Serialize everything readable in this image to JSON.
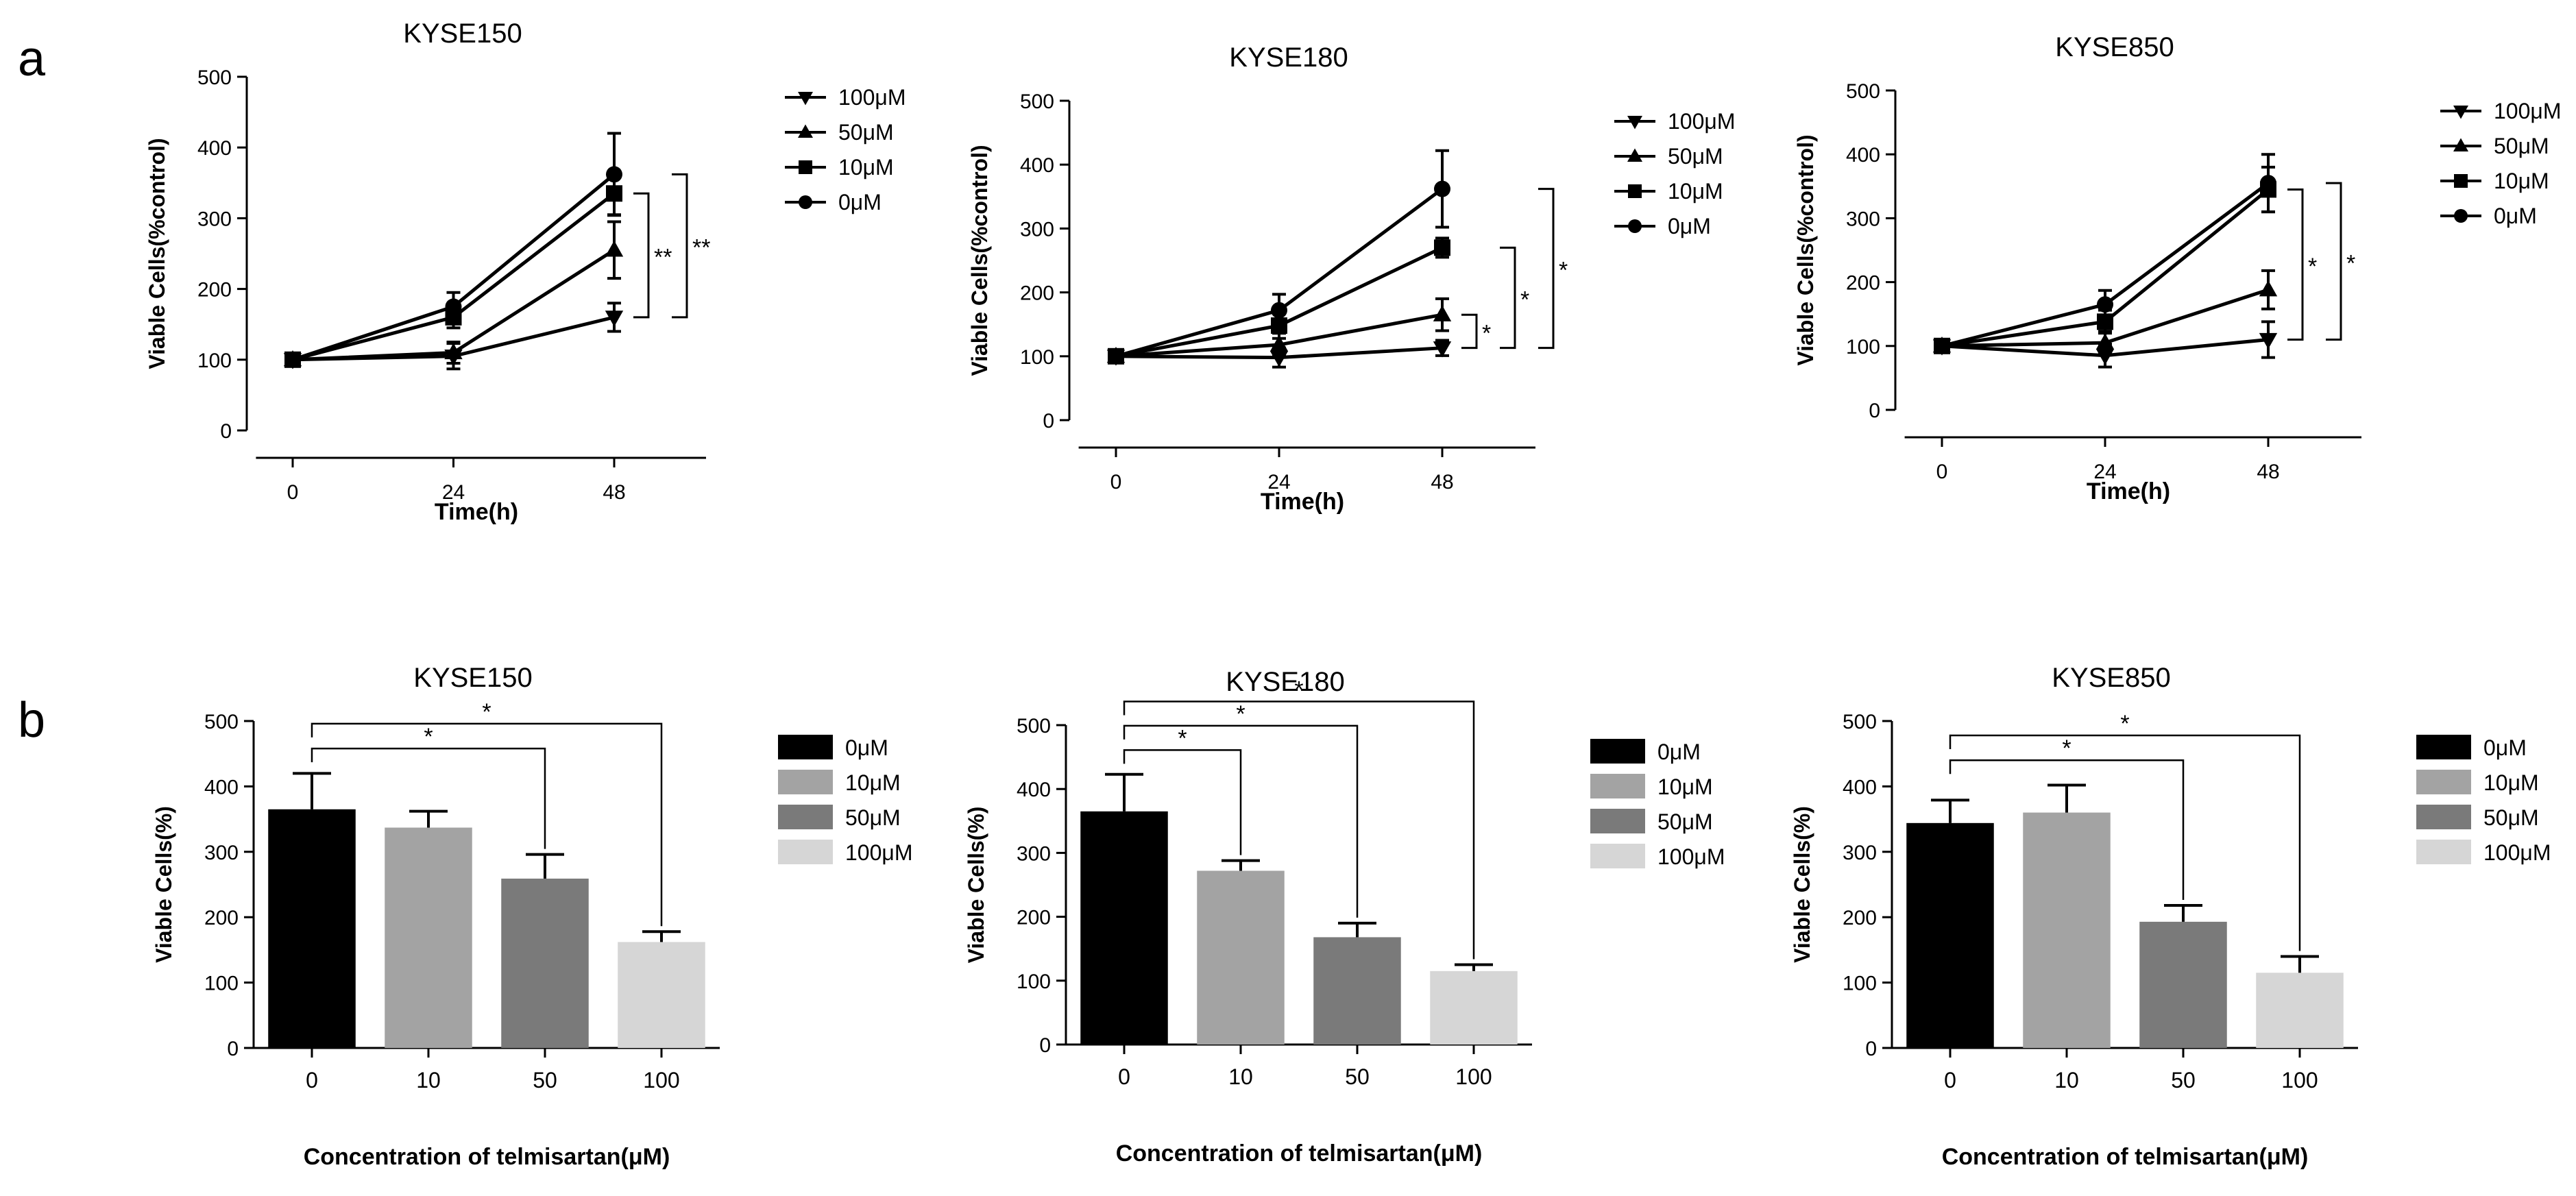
{
  "panel_labels": {
    "a": "a",
    "b": "b"
  },
  "chart_data": [
    {
      "type": "line",
      "panel": "a",
      "title": "KYSE150",
      "xlabel": "Time(h)",
      "ylabel": "Viable Cells(%control)",
      "x": [
        0,
        24,
        48
      ],
      "x_tick_labels": [
        "0",
        "24",
        "48"
      ],
      "ylim": [
        0,
        500
      ],
      "y_ticks": [
        0,
        100,
        200,
        300,
        400,
        500
      ],
      "series": [
        {
          "name": "100μM",
          "marker": "triangle-down",
          "values": [
            100,
            105,
            160
          ],
          "errors": [
            6,
            18,
            20
          ]
        },
        {
          "name": "50μM",
          "marker": "triangle-up",
          "values": [
            100,
            110,
            255
          ],
          "errors": [
            6,
            15,
            40
          ]
        },
        {
          "name": "10μM",
          "marker": "square",
          "values": [
            100,
            160,
            335
          ],
          "errors": [
            6,
            15,
            30
          ]
        },
        {
          "name": "0μM",
          "marker": "circle",
          "values": [
            100,
            175,
            362
          ],
          "errors": [
            6,
            20,
            58
          ]
        }
      ],
      "brackets": [
        {
          "label": "**",
          "from": 0,
          "to": 2
        },
        {
          "label": "**",
          "from": 0,
          "to": 3
        }
      ]
    },
    {
      "type": "line",
      "panel": "a",
      "title": "KYSE180",
      "xlabel": "Time(h)",
      "ylabel": "Viable Cells(%control)",
      "x": [
        0,
        24,
        48
      ],
      "x_tick_labels": [
        "0",
        "24",
        "48"
      ],
      "ylim": [
        0,
        500
      ],
      "y_ticks": [
        0,
        100,
        200,
        300,
        400,
        500
      ],
      "series": [
        {
          "name": "100μM",
          "marker": "triangle-down",
          "values": [
            100,
            98,
            113
          ],
          "errors": [
            5,
            15,
            12
          ]
        },
        {
          "name": "50μM",
          "marker": "triangle-up",
          "values": [
            100,
            118,
            165
          ],
          "errors": [
            5,
            18,
            25
          ]
        },
        {
          "name": "10μM",
          "marker": "square",
          "values": [
            100,
            148,
            270
          ],
          "errors": [
            5,
            20,
            15
          ]
        },
        {
          "name": "0μM",
          "marker": "circle",
          "values": [
            100,
            172,
            362
          ],
          "errors": [
            5,
            25,
            60
          ]
        }
      ],
      "brackets": [
        {
          "label": "*",
          "from": 0,
          "to": 1
        },
        {
          "label": "*",
          "from": 0,
          "to": 2
        },
        {
          "label": "*",
          "from": 0,
          "to": 3
        }
      ]
    },
    {
      "type": "line",
      "panel": "a",
      "title": "KYSE850",
      "xlabel": "Time(h)",
      "ylabel": "Viable Cells(%control)",
      "x": [
        0,
        24,
        48
      ],
      "x_tick_labels": [
        "0",
        "24",
        "48"
      ],
      "ylim": [
        0,
        500
      ],
      "y_ticks": [
        0,
        100,
        200,
        300,
        400,
        500
      ],
      "series": [
        {
          "name": "100μM",
          "marker": "triangle-down",
          "values": [
            100,
            85,
            110
          ],
          "errors": [
            5,
            18,
            28
          ]
        },
        {
          "name": "50μM",
          "marker": "triangle-up",
          "values": [
            100,
            105,
            188
          ],
          "errors": [
            5,
            18,
            30
          ]
        },
        {
          "name": "10μM",
          "marker": "square",
          "values": [
            100,
            138,
            345
          ],
          "errors": [
            5,
            18,
            35
          ]
        },
        {
          "name": "0μM",
          "marker": "circle",
          "values": [
            100,
            165,
            355
          ],
          "errors": [
            5,
            22,
            45
          ]
        }
      ],
      "brackets": [
        {
          "label": "*",
          "from": 0,
          "to": 2
        },
        {
          "label": "*",
          "from": 0,
          "to": 3
        }
      ]
    },
    {
      "type": "bar",
      "panel": "b",
      "title": "KYSE150",
      "xlabel": "Concentration of telmisartan(μM)",
      "ylabel": "Viable Cells(%)",
      "categories": [
        "0",
        "10",
        "50",
        "100"
      ],
      "values": [
        365,
        337,
        259,
        162
      ],
      "errors": [
        55,
        25,
        37,
        16
      ],
      "legend": [
        "0μM",
        "10μM",
        "50μM",
        "100μM"
      ],
      "bar_colors": [
        "#000000",
        "#a3a3a3",
        "#7a7a7a",
        "#d6d6d6"
      ],
      "ylim": [
        0,
        500
      ],
      "y_ticks": [
        0,
        100,
        200,
        300,
        400,
        500
      ],
      "significance": [
        {
          "from": 0,
          "to": 2,
          "label": "*"
        },
        {
          "from": 0,
          "to": 3,
          "label": "*"
        }
      ]
    },
    {
      "type": "bar",
      "panel": "b",
      "title": "KYSE180",
      "xlabel": "Concentration of telmisartan(μM)",
      "ylabel": "Viable Cells(%)",
      "categories": [
        "0",
        "10",
        "50",
        "100"
      ],
      "values": [
        365,
        272,
        168,
        115
      ],
      "errors": [
        58,
        16,
        22,
        10
      ],
      "legend": [
        "0μM",
        "10μM",
        "50μM",
        "100μM"
      ],
      "bar_colors": [
        "#000000",
        "#a3a3a3",
        "#7a7a7a",
        "#d6d6d6"
      ],
      "ylim": [
        0,
        500
      ],
      "y_ticks": [
        0,
        100,
        200,
        300,
        400,
        500
      ],
      "significance": [
        {
          "from": 0,
          "to": 1,
          "label": "*"
        },
        {
          "from": 0,
          "to": 2,
          "label": "*"
        },
        {
          "from": 0,
          "to": 3,
          "label": "*"
        }
      ]
    },
    {
      "type": "bar",
      "panel": "b",
      "title": "KYSE850",
      "xlabel": "Concentration of telmisartan(μM)",
      "ylabel": "Viable Cells(%)",
      "categories": [
        "0",
        "10",
        "50",
        "100"
      ],
      "values": [
        344,
        360,
        193,
        115
      ],
      "errors": [
        35,
        42,
        25,
        25
      ],
      "legend": [
        "0μM",
        "10μM",
        "50μM",
        "100μM"
      ],
      "bar_colors": [
        "#000000",
        "#a3a3a3",
        "#7a7a7a",
        "#d6d6d6"
      ],
      "ylim": [
        0,
        500
      ],
      "y_ticks": [
        0,
        100,
        200,
        300,
        400,
        500
      ],
      "significance": [
        {
          "from": 0,
          "to": 2,
          "label": "*"
        },
        {
          "from": 0,
          "to": 3,
          "label": "*"
        }
      ]
    }
  ]
}
